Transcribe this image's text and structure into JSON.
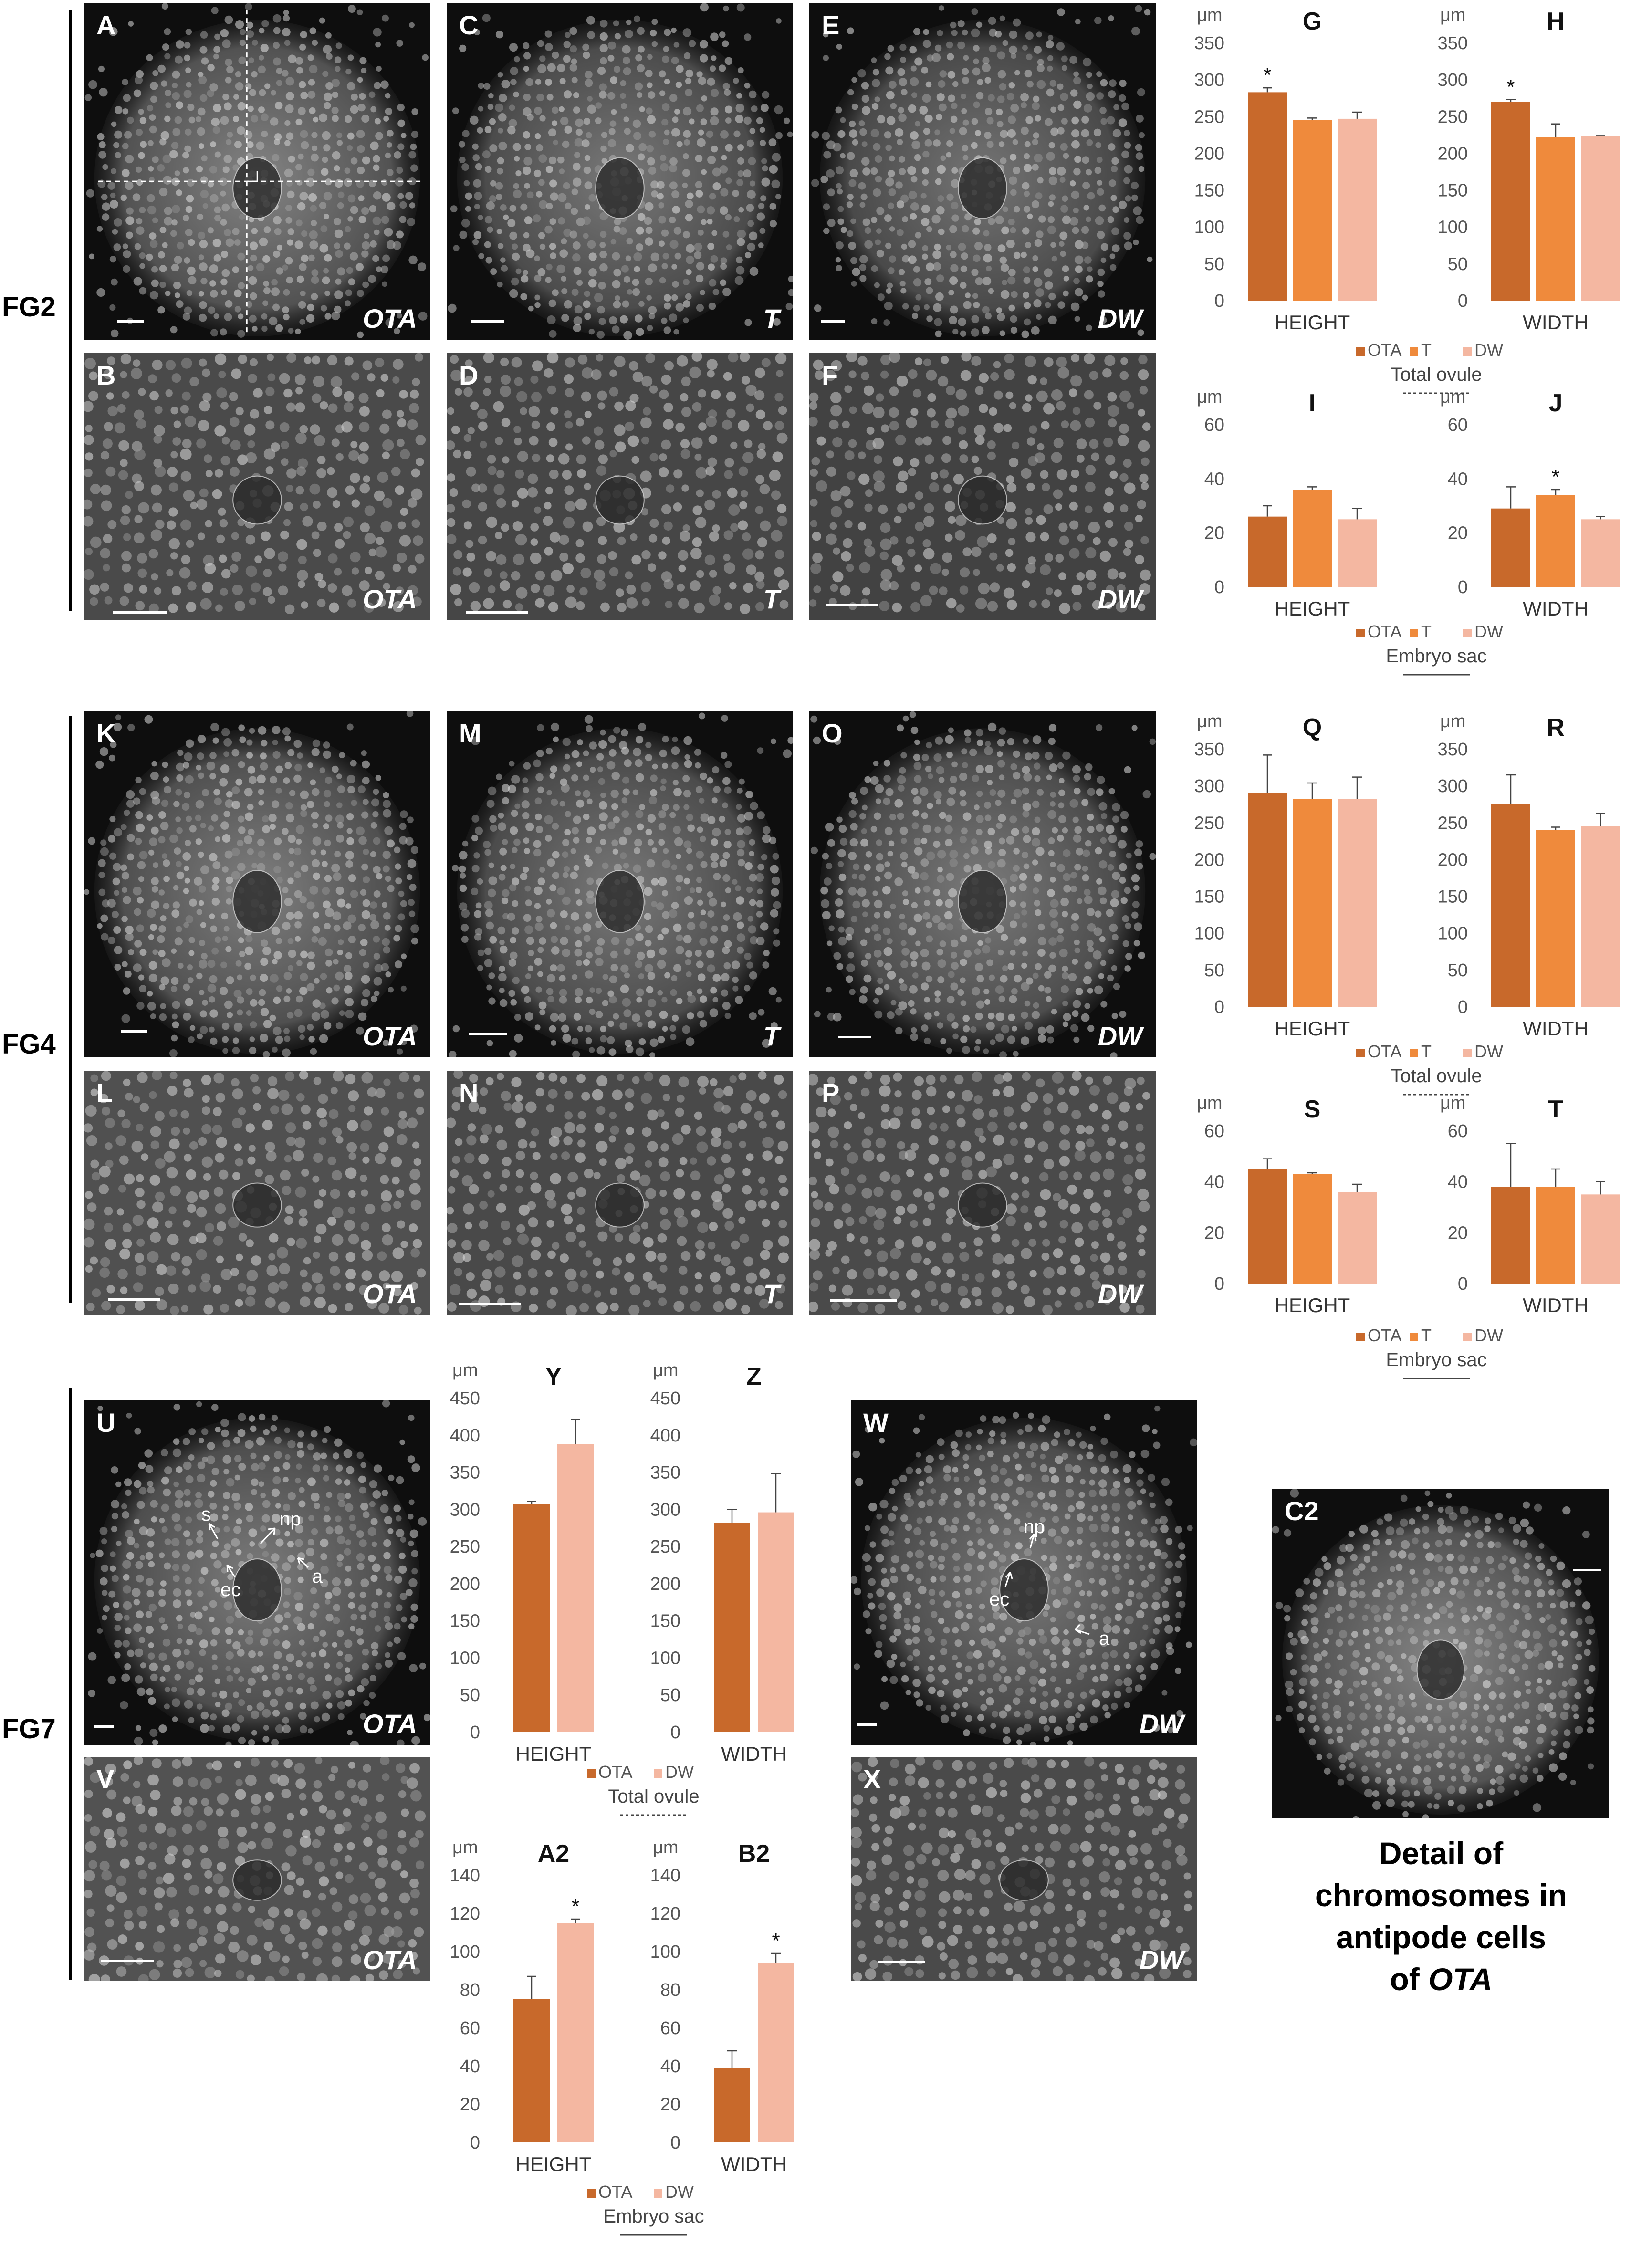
{
  "figure": {
    "groups": [
      {
        "id": "fg2",
        "label": "FG2"
      },
      {
        "id": "fg4",
        "label": "FG4"
      },
      {
        "id": "fg7",
        "label": "FG7"
      }
    ],
    "panels": [
      {
        "id": "A",
        "label": "A",
        "genotype": "OTA",
        "tone": "#8a8a8a",
        "dense": true,
        "crosshair": true
      },
      {
        "id": "B",
        "label": "B",
        "genotype": "OTA",
        "tone": "#7c7c7c",
        "dense": false
      },
      {
        "id": "C",
        "label": "C",
        "genotype": "T",
        "tone": "#7e7e7e",
        "dense": true
      },
      {
        "id": "D",
        "label": "D",
        "genotype": "T",
        "tone": "#747474",
        "dense": false
      },
      {
        "id": "E",
        "label": "E",
        "genotype": "DW",
        "tone": "#7a7a7a",
        "dense": true
      },
      {
        "id": "F",
        "label": "F",
        "genotype": "DW",
        "tone": "#6e6e6e",
        "dense": false
      },
      {
        "id": "K",
        "label": "K",
        "genotype": "OTA",
        "tone": "#858585",
        "dense": true
      },
      {
        "id": "L",
        "label": "L",
        "genotype": "OTA",
        "tone": "#868686",
        "dense": false
      },
      {
        "id": "M",
        "label": "M",
        "genotype": "T",
        "tone": "#7e7e7e",
        "dense": true
      },
      {
        "id": "N",
        "label": "N",
        "genotype": "T",
        "tone": "#7a7a7a",
        "dense": false
      },
      {
        "id": "O",
        "label": "O",
        "genotype": "DW",
        "tone": "#808080",
        "dense": true
      },
      {
        "id": "P",
        "label": "P",
        "genotype": "DW",
        "tone": "#7c7c7c",
        "dense": false
      },
      {
        "id": "U",
        "label": "U",
        "genotype": "OTA",
        "tone": "#828282",
        "dense": true
      },
      {
        "id": "V",
        "label": "V",
        "genotype": "OTA",
        "tone": "#8a8a8a",
        "dense": false
      },
      {
        "id": "W",
        "label": "W",
        "genotype": "DW",
        "tone": "#7e7e7e",
        "dense": true
      },
      {
        "id": "X",
        "label": "X",
        "genotype": "DW",
        "tone": "#7c7c7c",
        "dense": false
      },
      {
        "id": "C2",
        "label": "C2",
        "genotype": "",
        "tone": "#8c8c8c",
        "dense": true
      }
    ],
    "annotations": {
      "U": [
        {
          "text": "s"
        },
        {
          "text": "np"
        },
        {
          "text": "ec"
        },
        {
          "text": "a"
        }
      ],
      "W": [
        {
          "text": "np"
        },
        {
          "text": "ec"
        },
        {
          "text": "a"
        }
      ]
    },
    "caption": {
      "line1": "Detail of",
      "line2": "chromosomes in",
      "line3": "antipode cells",
      "line4_prefix": "of ",
      "line4_italic": "OTA"
    }
  },
  "colors": {
    "OTA": "#c8692b",
    "T": "#ef8a3c",
    "DW": "#f4b7a1"
  },
  "chart_data": [
    {
      "id": "G",
      "type": "bar",
      "title": "G",
      "unit": "μm",
      "ylim": [
        0,
        350
      ],
      "ticks": [
        0,
        50,
        100,
        150,
        200,
        250,
        300,
        350
      ],
      "categories": [
        "HEIGHT"
      ],
      "series": [
        {
          "name": "OTA",
          "values": [
            283
          ],
          "err": [
            6
          ],
          "star": true
        },
        {
          "name": "T",
          "values": [
            245
          ],
          "err": [
            3
          ]
        },
        {
          "name": "DW",
          "values": [
            247
          ],
          "err": [
            9
          ]
        }
      ]
    },
    {
      "id": "H",
      "type": "bar",
      "title": "H",
      "unit": "μm",
      "ylim": [
        0,
        350
      ],
      "ticks": [
        0,
        50,
        100,
        150,
        200,
        250,
        300,
        350
      ],
      "categories": [
        "WIDTH"
      ],
      "series": [
        {
          "name": "OTA",
          "values": [
            270
          ],
          "err": [
            3
          ],
          "star": true
        },
        {
          "name": "T",
          "values": [
            222
          ],
          "err": [
            18
          ]
        },
        {
          "name": "DW",
          "values": [
            223
          ],
          "err": [
            1
          ]
        }
      ]
    },
    {
      "id": "I",
      "type": "bar",
      "title": "I",
      "unit": "μm",
      "ylim": [
        0,
        60
      ],
      "ticks": [
        0,
        20,
        40,
        60
      ],
      "categories": [
        "HEIGHT"
      ],
      "series": [
        {
          "name": "OTA",
          "values": [
            26
          ],
          "err": [
            4
          ]
        },
        {
          "name": "T",
          "values": [
            36
          ],
          "err": [
            1
          ]
        },
        {
          "name": "DW",
          "values": [
            25
          ],
          "err": [
            4
          ]
        }
      ]
    },
    {
      "id": "J",
      "type": "bar",
      "title": "J",
      "unit": "μm",
      "ylim": [
        0,
        60
      ],
      "ticks": [
        0,
        20,
        40,
        60
      ],
      "categories": [
        "WIDTH"
      ],
      "series": [
        {
          "name": "OTA",
          "values": [
            29
          ],
          "err": [
            8
          ]
        },
        {
          "name": "T",
          "values": [
            34
          ],
          "err": [
            2
          ],
          "star": true
        },
        {
          "name": "DW",
          "values": [
            25
          ],
          "err": [
            1
          ]
        }
      ]
    },
    {
      "id": "Q",
      "type": "bar",
      "title": "Q",
      "unit": "μm",
      "ylim": [
        0,
        350
      ],
      "ticks": [
        0,
        50,
        100,
        150,
        200,
        250,
        300,
        350
      ],
      "categories": [
        "HEIGHT"
      ],
      "series": [
        {
          "name": "OTA",
          "values": [
            290
          ],
          "err": [
            52
          ]
        },
        {
          "name": "T",
          "values": [
            282
          ],
          "err": [
            22
          ]
        },
        {
          "name": "DW",
          "values": [
            282
          ],
          "err": [
            30
          ]
        }
      ]
    },
    {
      "id": "R",
      "type": "bar",
      "title": "R",
      "unit": "μm",
      "ylim": [
        0,
        350
      ],
      "ticks": [
        0,
        50,
        100,
        150,
        200,
        250,
        300,
        350
      ],
      "categories": [
        "WIDTH"
      ],
      "series": [
        {
          "name": "OTA",
          "values": [
            275
          ],
          "err": [
            40
          ]
        },
        {
          "name": "T",
          "values": [
            240
          ],
          "err": [
            4
          ]
        },
        {
          "name": "DW",
          "values": [
            245
          ],
          "err": [
            18
          ]
        }
      ]
    },
    {
      "id": "S",
      "type": "bar",
      "title": "S",
      "unit": "μm",
      "ylim": [
        0,
        60
      ],
      "ticks": [
        0,
        20,
        40,
        60
      ],
      "categories": [
        "HEIGHT"
      ],
      "series": [
        {
          "name": "OTA",
          "values": [
            45
          ],
          "err": [
            4
          ]
        },
        {
          "name": "T",
          "values": [
            43
          ],
          "err": [
            0.5
          ]
        },
        {
          "name": "DW",
          "values": [
            36
          ],
          "err": [
            3
          ]
        }
      ]
    },
    {
      "id": "T",
      "type": "bar",
      "title": "T",
      "unit": "μm",
      "ylim": [
        0,
        60
      ],
      "ticks": [
        0,
        20,
        40,
        60
      ],
      "categories": [
        "WIDTH"
      ],
      "series": [
        {
          "name": "OTA",
          "values": [
            38
          ],
          "err": [
            17
          ]
        },
        {
          "name": "T",
          "values": [
            38
          ],
          "err": [
            7
          ]
        },
        {
          "name": "DW",
          "values": [
            35
          ],
          "err": [
            5
          ]
        }
      ]
    },
    {
      "id": "Y",
      "type": "bar",
      "title": "Y",
      "unit": "μm",
      "ylim": [
        0,
        450
      ],
      "ticks": [
        0,
        50,
        100,
        150,
        200,
        250,
        300,
        350,
        400,
        450
      ],
      "categories": [
        "HEIGHT"
      ],
      "series": [
        {
          "name": "OTA",
          "values": [
            307
          ],
          "err": [
            4
          ]
        },
        {
          "name": "DW",
          "values": [
            388
          ],
          "err": [
            33
          ]
        }
      ]
    },
    {
      "id": "Z",
      "type": "bar",
      "title": "Z",
      "unit": "μm",
      "ylim": [
        0,
        450
      ],
      "ticks": [
        0,
        50,
        100,
        150,
        200,
        250,
        300,
        350,
        400,
        450
      ],
      "categories": [
        "WIDTH"
      ],
      "series": [
        {
          "name": "OTA",
          "values": [
            282
          ],
          "err": [
            18
          ]
        },
        {
          "name": "DW",
          "values": [
            296
          ],
          "err": [
            52
          ]
        }
      ]
    },
    {
      "id": "A2",
      "type": "bar",
      "title": "A2",
      "unit": "μm",
      "ylim": [
        0,
        140
      ],
      "ticks": [
        0,
        20,
        40,
        60,
        80,
        100,
        120,
        140
      ],
      "categories": [
        "HEIGHT"
      ],
      "series": [
        {
          "name": "OTA",
          "values": [
            75
          ],
          "err": [
            12
          ]
        },
        {
          "name": "DW",
          "values": [
            115
          ],
          "err": [
            2
          ],
          "star": true
        }
      ]
    },
    {
      "id": "B2",
      "type": "bar",
      "title": "B2",
      "unit": "μm",
      "ylim": [
        0,
        140
      ],
      "ticks": [
        0,
        20,
        40,
        60,
        80,
        100,
        120,
        140
      ],
      "categories": [
        "WIDTH"
      ],
      "series": [
        {
          "name": "OTA",
          "values": [
            39
          ],
          "err": [
            9
          ]
        },
        {
          "name": "DW",
          "values": [
            94
          ],
          "err": [
            5
          ],
          "star": true
        }
      ]
    }
  ],
  "legends": [
    {
      "id": "leg1",
      "entries": [
        "OTA",
        "T",
        "DW"
      ],
      "label": "Total ovule",
      "dashed": true
    },
    {
      "id": "leg2",
      "entries": [
        "OTA",
        "T",
        "DW"
      ],
      "label": "Embryo sac",
      "dashed": false
    },
    {
      "id": "leg3",
      "entries": [
        "OTA",
        "T",
        "DW"
      ],
      "label": "Total ovule",
      "dashed": true
    },
    {
      "id": "leg4",
      "entries": [
        "OTA",
        "T",
        "DW"
      ],
      "label": "Embryo sac",
      "dashed": false
    },
    {
      "id": "leg5",
      "entries": [
        "OTA",
        "DW"
      ],
      "label": "Total ovule",
      "dashed": true
    },
    {
      "id": "leg6",
      "entries": [
        "OTA",
        "DW"
      ],
      "label": "Embryo sac",
      "dashed": false
    }
  ]
}
